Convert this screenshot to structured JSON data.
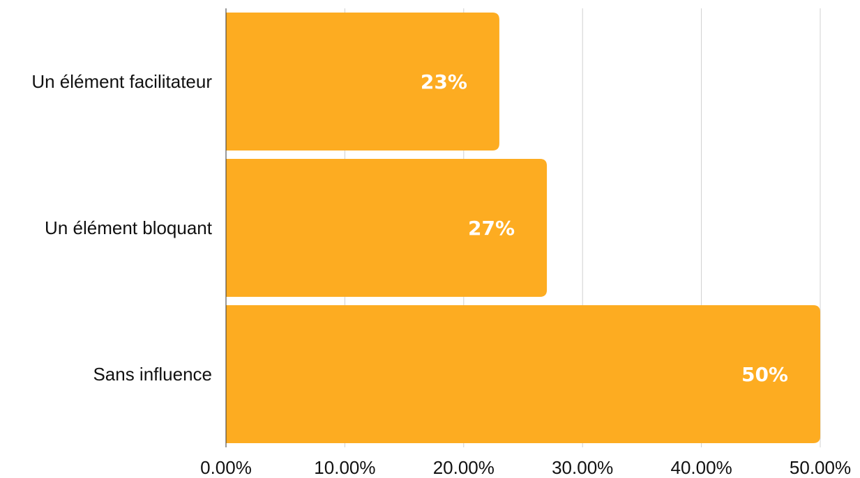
{
  "chart_data": {
    "type": "bar",
    "orientation": "horizontal",
    "categories": [
      "Un élément facilitateur",
      "Un élément bloquant",
      "Sans influence"
    ],
    "values": [
      23,
      27,
      50
    ],
    "data_labels": [
      "23%",
      "27%",
      "50%"
    ],
    "x_ticks": [
      0,
      10,
      20,
      30,
      40,
      50
    ],
    "x_tick_labels": [
      "0.00%",
      "10.00%",
      "20.00%",
      "30.00%",
      "40.00%",
      "50.00%"
    ],
    "xlim": [
      0,
      50
    ],
    "grid": "vertical",
    "legend": "none",
    "colors": {
      "bar": "#FDAC21",
      "grid": "#d0d0d0",
      "axis": "#333333",
      "data_label": "#ffffff",
      "text": "#111111"
    }
  }
}
